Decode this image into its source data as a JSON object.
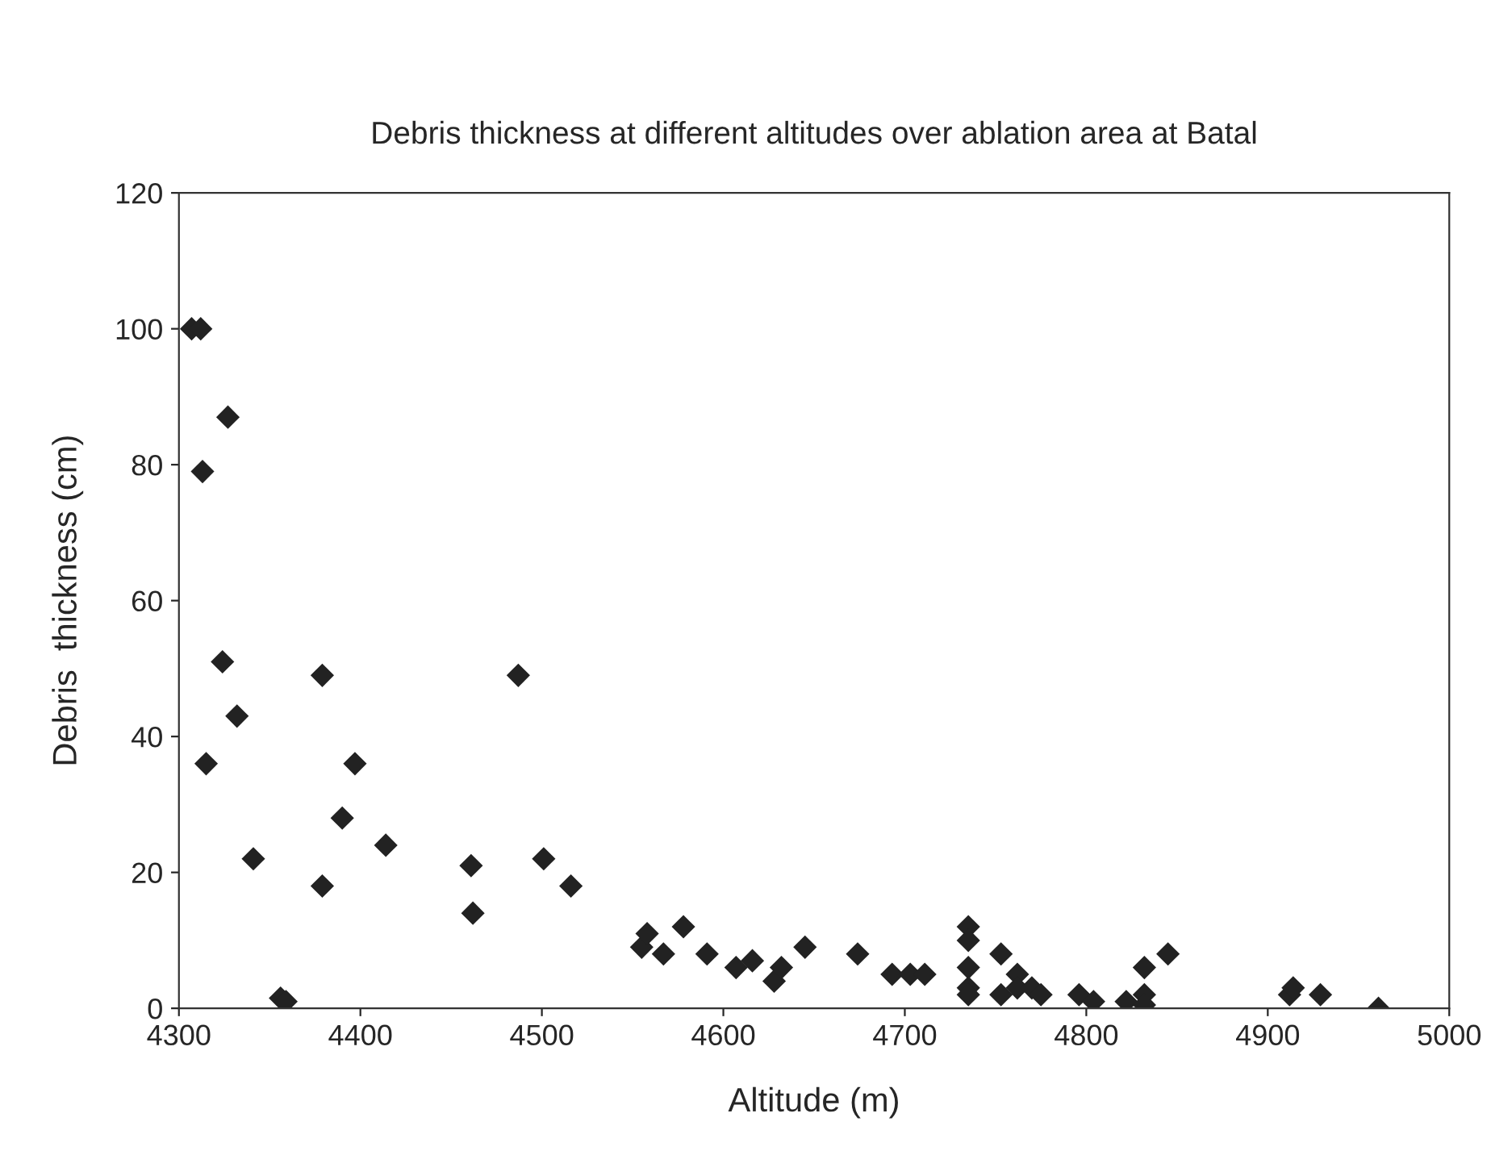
{
  "chart_data": {
    "type": "scatter",
    "title": "Debris thickness at different altitudes over ablation area at Batal",
    "xlabel": "Altitude (m)",
    "ylabel": "Debris  thickness (cm)",
    "x": [
      4307,
      4312,
      4327,
      4313,
      4324,
      4332,
      4315,
      4341,
      4356,
      4359,
      4379,
      4379,
      4397,
      4390,
      4414,
      4461,
      4462,
      4487,
      4501,
      4516,
      4555,
      4558,
      4567,
      4578,
      4591,
      4607,
      4616,
      4628,
      4632,
      4645,
      4674,
      4693,
      4703,
      4711,
      4735,
      4735,
      4735,
      4735,
      4735,
      4753,
      4753,
      4762,
      4762,
      4770,
      4775,
      4796,
      4804,
      4822,
      4832,
      4832,
      4832,
      4845,
      4912,
      4914,
      4929,
      4961
    ],
    "values": [
      100,
      100,
      87,
      79,
      51,
      43,
      36,
      22,
      1.5,
      1,
      49,
      18,
      36,
      28,
      24,
      21,
      14,
      49,
      22,
      18,
      9,
      11,
      8,
      12,
      8,
      6,
      7,
      4,
      6,
      9,
      8,
      5,
      5,
      5,
      12,
      10,
      6,
      3,
      2,
      8,
      2,
      5,
      3,
      3,
      2,
      2,
      1,
      1,
      6,
      2,
      0.5,
      8,
      2,
      3,
      2,
      0
    ],
    "color": "#222222",
    "marker": "diamond",
    "xlim": [
      4300,
      5000
    ],
    "xticks": [
      4300,
      4400,
      4500,
      4600,
      4700,
      4800,
      4900,
      5000
    ],
    "ylim": [
      0,
      120
    ],
    "yticks": [
      0,
      20,
      40,
      60,
      80,
      100,
      120
    ],
    "grid": false,
    "legend": false
  }
}
